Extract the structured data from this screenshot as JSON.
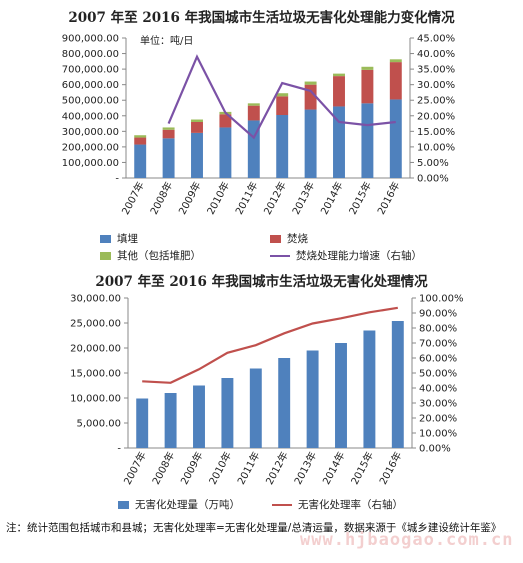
{
  "chart_data": [
    {
      "type": "bar",
      "title": "2007 年至 2016 年我国城市生活垃圾无害化处理能力变化情况",
      "unit_label": "单位：吨/日",
      "categories": [
        "2007年",
        "2008年",
        "2009年",
        "2010年",
        "2011年",
        "2012年",
        "2013年",
        "2014年",
        "2015年",
        "2016年"
      ],
      "stacked": true,
      "y_ticks": [
        "-",
        "100,000.00",
        "200,000.00",
        "300,000.00",
        "400,000.00",
        "500,000.00",
        "600,000.00",
        "700,000.00",
        "800,000.00",
        "900,000.00"
      ],
      "y2_ticks": [
        "0.00%",
        "5.00%",
        "10.00%",
        "15.00%",
        "20.00%",
        "25.00%",
        "30.00%",
        "35.00%",
        "40.00%",
        "45.00%"
      ],
      "ylim": [
        0,
        900000
      ],
      "y2lim": [
        0,
        45
      ],
      "series": [
        {
          "name": "填埋",
          "color": "#4f81bd",
          "values": [
            215000,
            255000,
            290000,
            325000,
            370000,
            405000,
            440000,
            460000,
            480000,
            505000
          ]
        },
        {
          "name": "焚烧",
          "color": "#c0504d",
          "values": [
            45000,
            55000,
            70000,
            85000,
            95000,
            120000,
            160000,
            195000,
            215000,
            240000
          ]
        },
        {
          "name": "其他（包括堆肥）",
          "color": "#9bbb59",
          "values": [
            15000,
            15000,
            16000,
            15000,
            15000,
            20000,
            20000,
            16000,
            20000,
            18000
          ]
        }
      ],
      "line_series": [
        {
          "name": "焚烧处理能力增速（右轴）",
          "color": "#7b52a6",
          "axis": "right",
          "values": [
            null,
            17.5,
            39.0,
            21.0,
            13.0,
            30.5,
            28.0,
            18.0,
            17.0,
            18.0
          ]
        }
      ]
    },
    {
      "type": "bar",
      "title": "2007 年至 2016 年我国城市生活垃圾无害化处理情况",
      "categories": [
        "2007年",
        "2008年",
        "2009年",
        "2010年",
        "2011年",
        "2012年",
        "2013年",
        "2014年",
        "2015年",
        "2016年"
      ],
      "y_ticks": [
        "-",
        "5,000.00",
        "10,000.00",
        "15,000.00",
        "20,000.00",
        "25,000.00",
        "30,000.00"
      ],
      "y2_ticks": [
        "0.00%",
        "10.00%",
        "20.00%",
        "30.00%",
        "40.00%",
        "50.00%",
        "60.00%",
        "70.00%",
        "80.00%",
        "90.00%",
        "100.00%"
      ],
      "ylim": [
        0,
        30000
      ],
      "y2lim": [
        0,
        100
      ],
      "series": [
        {
          "name": "无害化处理量（万吨）",
          "color": "#4f81bd",
          "values": [
            9900,
            11000,
            12500,
            14000,
            15900,
            18000,
            19500,
            21000,
            23500,
            25400
          ]
        }
      ],
      "line_series": [
        {
          "name": "无害化处理率（右轴）",
          "color": "#c0504d",
          "axis": "right",
          "values": [
            44.5,
            43.5,
            52.5,
            63.5,
            68.5,
            76.5,
            83.0,
            86.5,
            90.5,
            93.5
          ]
        }
      ]
    }
  ],
  "note": "注：统计范围包括城市和县城；无害化处理率=无害化处理量/总清运量，数据来源于《城乡建设统计年鉴》",
  "watermark": "www.hjbaogao.com.cn"
}
